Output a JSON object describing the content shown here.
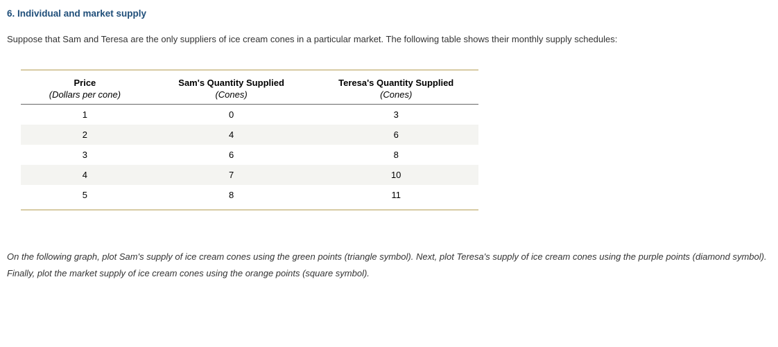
{
  "heading": "6. Individual and market supply",
  "intro": "Suppose that Sam and Teresa are the only suppliers of ice cream cones in a particular market. The following table shows their monthly supply schedules:",
  "table": {
    "columns": [
      {
        "title": "Price",
        "subtitle": "(Dollars per cone)"
      },
      {
        "title": "Sam's Quantity Supplied",
        "subtitle": "(Cones)"
      },
      {
        "title": "Teresa's Quantity Supplied",
        "subtitle": "(Cones)"
      }
    ],
    "rows": [
      [
        "1",
        "0",
        "3"
      ],
      [
        "2",
        "4",
        "6"
      ],
      [
        "3",
        "6",
        "8"
      ],
      [
        "4",
        "7",
        "10"
      ],
      [
        "5",
        "8",
        "11"
      ]
    ],
    "border_color": "#d7cba3",
    "header_border_color": "#666666",
    "alt_row_bg": "#f4f4f1",
    "text_color": "#000000"
  },
  "instructions": "On the following graph, plot Sam's supply of ice cream cones using the green points (triangle symbol). Next, plot Teresa's supply of ice cream cones using the purple points (diamond symbol). Finally, plot the market supply of ice cream cones using the orange points (square symbol).",
  "colors": {
    "heading": "#1f4e79",
    "body_text": "#333333",
    "background": "#ffffff"
  }
}
